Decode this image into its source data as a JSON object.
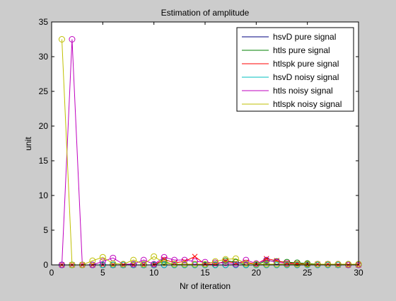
{
  "chart_data": {
    "type": "line",
    "title": "Estimation of amplitude",
    "xlabel": "Nr of iteration",
    "ylabel": "unit",
    "xlim": [
      0,
      30
    ],
    "ylim": [
      0,
      35
    ],
    "xticks": [
      "0",
      "5",
      "10",
      "15",
      "20",
      "25",
      "30"
    ],
    "yticks": [
      "0",
      "5",
      "10",
      "15",
      "20",
      "25",
      "30",
      "35"
    ],
    "grid": false,
    "legend_position": "top-right",
    "x": [
      1,
      2,
      3,
      4,
      5,
      6,
      7,
      8,
      9,
      10,
      11,
      12,
      13,
      14,
      15,
      16,
      17,
      18,
      19,
      20,
      21,
      22,
      23,
      24,
      25,
      26,
      27,
      28,
      29,
      30
    ],
    "series": [
      {
        "name": "hsvD pure signal",
        "color": "#00007f",
        "marker": "o",
        "values": [
          0,
          0,
          0,
          0,
          0,
          0,
          0,
          0,
          0,
          0,
          0,
          0,
          0,
          0,
          0,
          0,
          0,
          0,
          0,
          0,
          0,
          0,
          0,
          0,
          0,
          0,
          0,
          0,
          0,
          0
        ]
      },
      {
        "name": "htls pure signal",
        "color": "#007f00",
        "marker": "o",
        "values": [
          0,
          0,
          0,
          0,
          0,
          0,
          0,
          0,
          0,
          0,
          0.5,
          0,
          0,
          0,
          0,
          0,
          0.6,
          0.4,
          0,
          0,
          0.6,
          0.5,
          0.4,
          0.3,
          0.2,
          0.1,
          0.1,
          0.1,
          0.1,
          0.1
        ]
      },
      {
        "name": "htlspk pure signal",
        "color": "#ff0000",
        "marker": "x",
        "values": [
          0,
          0,
          0,
          0,
          0,
          0,
          0,
          0,
          0,
          0,
          0.8,
          0.3,
          0.5,
          1.2,
          0.1,
          0.1,
          0.5,
          0.3,
          0.4,
          0.1,
          0.9,
          0.6,
          0.3,
          0.2,
          0.1,
          0.1,
          0.1,
          0,
          0,
          0
        ]
      },
      {
        "name": "hsvD noisy signal",
        "color": "#00bfbf",
        "marker": "o",
        "values": [
          0,
          0,
          0,
          0,
          0,
          0,
          0,
          0,
          0,
          0,
          0,
          0,
          0,
          0,
          0,
          0,
          0,
          0,
          0,
          0,
          0,
          0,
          0,
          0,
          0,
          0,
          0,
          0,
          0,
          0
        ]
      },
      {
        "name": "htls noisy signal",
        "color": "#bf00bf",
        "marker": "o",
        "values": [
          0,
          32.5,
          0,
          0,
          0.5,
          1.0,
          0.1,
          0.1,
          0.7,
          0.1,
          1.1,
          0.7,
          0.7,
          0.5,
          0.4,
          0.3,
          0.3,
          0.1,
          0.7,
          0.2,
          0.7,
          0.4,
          0.2,
          0.1,
          0.1,
          0.1,
          0.1,
          0.1,
          0,
          0
        ]
      },
      {
        "name": "htlspk noisy signal",
        "color": "#bfbf00",
        "marker": "o",
        "values": [
          32.5,
          0,
          0,
          0.6,
          1.1,
          0.2,
          0.1,
          0.7,
          0.1,
          1.2,
          0.3,
          0.1,
          0.1,
          0.1,
          0.1,
          0.5,
          0.8,
          0.9,
          0.2,
          0.1,
          0.1,
          0.1,
          0.1,
          0.1,
          0.1,
          0.1,
          0.1,
          0.1,
          0.1,
          0.1
        ]
      }
    ]
  }
}
